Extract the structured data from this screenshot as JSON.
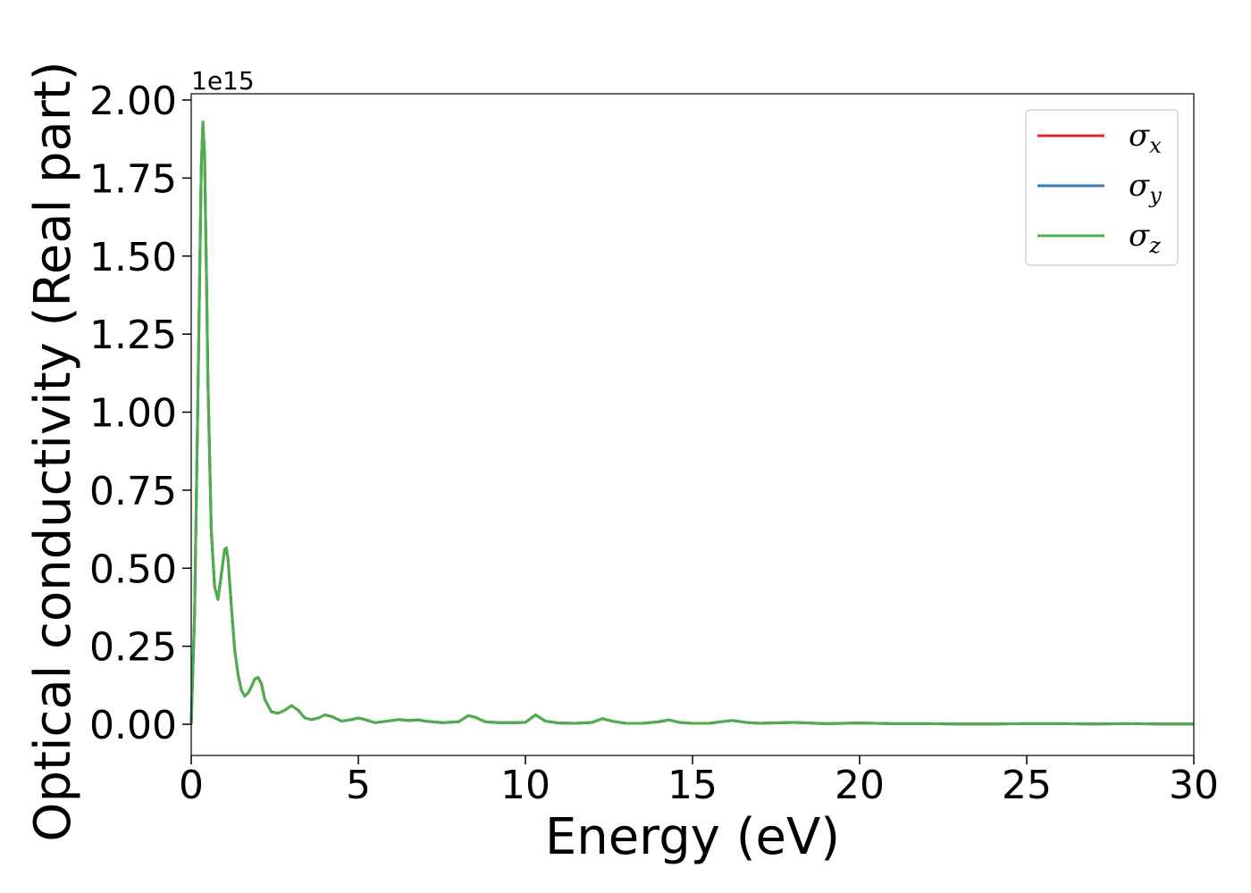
{
  "chart_data": {
    "type": "line",
    "title": "",
    "xlabel": "Energy (eV)",
    "ylabel": "Optical conductivity (Real part)",
    "y_offset_text": "1e15",
    "xlim": [
      0,
      30
    ],
    "ylim": [
      -0.1,
      2.02
    ],
    "xticks": [
      0,
      5,
      10,
      15,
      20,
      25,
      30
    ],
    "xtick_labels": [
      "0",
      "5",
      "10",
      "15",
      "20",
      "25",
      "30"
    ],
    "yticks": [
      0.0,
      0.25,
      0.5,
      0.75,
      1.0,
      1.25,
      1.5,
      1.75,
      2.0
    ],
    "ytick_labels": [
      "0.00",
      "0.25",
      "0.50",
      "0.75",
      "1.00",
      "1.25",
      "1.50",
      "1.75",
      "2.00"
    ],
    "grid": false,
    "legend_position": "top-right",
    "x": [
      0,
      0.1,
      0.2,
      0.3,
      0.35,
      0.4,
      0.45,
      0.5,
      0.6,
      0.7,
      0.8,
      0.9,
      1.0,
      1.05,
      1.1,
      1.2,
      1.3,
      1.4,
      1.5,
      1.6,
      1.7,
      1.8,
      1.9,
      2.0,
      2.1,
      2.2,
      2.4,
      2.6,
      2.8,
      3.0,
      3.2,
      3.4,
      3.6,
      3.8,
      4.0,
      4.2,
      4.5,
      4.8,
      5.0,
      5.2,
      5.5,
      6.0,
      6.2,
      6.5,
      6.8,
      7.0,
      7.5,
      8.0,
      8.3,
      8.5,
      8.8,
      9.2,
      9.6,
      10.0,
      10.3,
      10.6,
      11.0,
      11.5,
      12.0,
      12.3,
      12.6,
      13.0,
      13.5,
      14.0,
      14.3,
      14.6,
      15.0,
      15.5,
      16.0,
      16.2,
      16.6,
      17.0,
      18.0,
      19.0,
      20.0,
      21.0,
      22.0,
      23.0,
      24.0,
      25.0,
      26.0,
      27.0,
      28.0,
      29.0,
      30.0
    ],
    "series": [
      {
        "name": "σ",
        "subscript": "x",
        "color": "#d62728",
        "values": [
          0.0,
          0.35,
          1.05,
          1.78,
          1.93,
          1.82,
          1.48,
          1.1,
          0.62,
          0.44,
          0.4,
          0.48,
          0.56,
          0.565,
          0.53,
          0.38,
          0.24,
          0.16,
          0.11,
          0.09,
          0.1,
          0.12,
          0.145,
          0.15,
          0.13,
          0.08,
          0.04,
          0.035,
          0.045,
          0.06,
          0.045,
          0.02,
          0.015,
          0.02,
          0.03,
          0.025,
          0.01,
          0.015,
          0.02,
          0.015,
          0.005,
          0.012,
          0.015,
          0.012,
          0.014,
          0.01,
          0.005,
          0.008,
          0.028,
          0.022,
          0.008,
          0.005,
          0.005,
          0.006,
          0.03,
          0.01,
          0.004,
          0.003,
          0.006,
          0.018,
          0.01,
          0.003,
          0.003,
          0.008,
          0.014,
          0.006,
          0.003,
          0.003,
          0.01,
          0.012,
          0.006,
          0.003,
          0.006,
          0.002,
          0.004,
          0.002,
          0.002,
          0.001,
          0.001,
          0.002,
          0.002,
          0.001,
          0.002,
          0.001,
          0.001
        ]
      },
      {
        "name": "σ",
        "subscript": "y",
        "color": "#3a7ab5",
        "values": [
          0.0,
          0.35,
          1.05,
          1.78,
          1.93,
          1.82,
          1.48,
          1.1,
          0.62,
          0.44,
          0.4,
          0.48,
          0.56,
          0.565,
          0.53,
          0.38,
          0.24,
          0.16,
          0.11,
          0.09,
          0.1,
          0.12,
          0.145,
          0.15,
          0.13,
          0.08,
          0.04,
          0.035,
          0.045,
          0.06,
          0.045,
          0.02,
          0.015,
          0.02,
          0.03,
          0.025,
          0.01,
          0.015,
          0.02,
          0.015,
          0.005,
          0.012,
          0.015,
          0.012,
          0.014,
          0.01,
          0.005,
          0.008,
          0.028,
          0.022,
          0.008,
          0.005,
          0.005,
          0.006,
          0.03,
          0.01,
          0.004,
          0.003,
          0.006,
          0.018,
          0.01,
          0.003,
          0.003,
          0.008,
          0.014,
          0.006,
          0.003,
          0.003,
          0.01,
          0.012,
          0.006,
          0.003,
          0.006,
          0.002,
          0.004,
          0.002,
          0.002,
          0.001,
          0.001,
          0.002,
          0.002,
          0.001,
          0.002,
          0.001,
          0.001
        ]
      },
      {
        "name": "σ",
        "subscript": "z",
        "color": "#4daf4a",
        "values": [
          0.0,
          0.35,
          1.05,
          1.78,
          1.93,
          1.82,
          1.48,
          1.1,
          0.62,
          0.44,
          0.4,
          0.48,
          0.56,
          0.565,
          0.53,
          0.38,
          0.24,
          0.16,
          0.11,
          0.09,
          0.1,
          0.12,
          0.145,
          0.15,
          0.13,
          0.08,
          0.04,
          0.035,
          0.045,
          0.06,
          0.045,
          0.02,
          0.015,
          0.02,
          0.03,
          0.025,
          0.01,
          0.015,
          0.02,
          0.015,
          0.005,
          0.012,
          0.015,
          0.012,
          0.014,
          0.01,
          0.005,
          0.008,
          0.028,
          0.022,
          0.008,
          0.005,
          0.005,
          0.006,
          0.03,
          0.01,
          0.004,
          0.003,
          0.006,
          0.018,
          0.01,
          0.003,
          0.003,
          0.008,
          0.014,
          0.006,
          0.003,
          0.003,
          0.01,
          0.012,
          0.006,
          0.003,
          0.006,
          0.002,
          0.004,
          0.002,
          0.002,
          0.001,
          0.001,
          0.002,
          0.002,
          0.001,
          0.002,
          0.001,
          0.001
        ]
      }
    ]
  }
}
